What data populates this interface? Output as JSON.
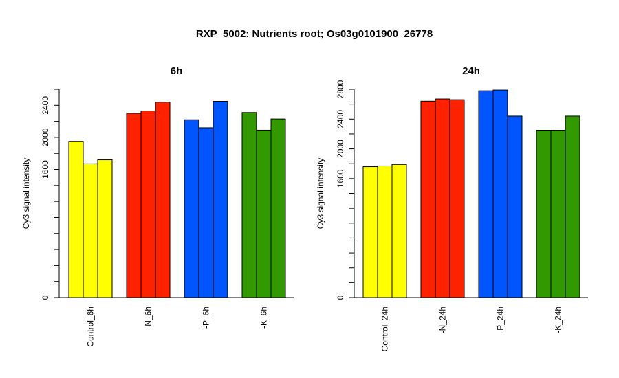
{
  "title": "RXP_5002: Nutrients root; Os03g0101900_26778",
  "chart_data": [
    {
      "type": "bar",
      "title": "6h",
      "ylabel": "Cy3 signal intensity",
      "xlabel": "",
      "yticks": [
        0,
        1600,
        2000,
        2400
      ],
      "ylim": [
        0,
        2600
      ],
      "groups": [
        {
          "name": "Control_6h",
          "color": "#ffff00",
          "values": [
            1950,
            1670,
            1720
          ]
        },
        {
          "name": "-N_6h",
          "color": "#ff2200",
          "values": [
            2300,
            2330,
            2440
          ]
        },
        {
          "name": "-P_6h",
          "color": "#0055ff",
          "values": [
            2220,
            2120,
            2450
          ]
        },
        {
          "name": "-K_6h",
          "color": "#339900",
          "values": [
            2310,
            2090,
            2230
          ]
        }
      ]
    },
    {
      "type": "bar",
      "title": "24h",
      "ylabel": "Cy3 signal intensity",
      "xlabel": "",
      "yticks": [
        0,
        1600,
        2000,
        2400,
        2800
      ],
      "ylim": [
        0,
        2800
      ],
      "groups": [
        {
          "name": "Control_24h",
          "color": "#ffff00",
          "values": [
            1760,
            1770,
            1790
          ]
        },
        {
          "name": "-N_24h",
          "color": "#ff2200",
          "values": [
            2640,
            2670,
            2660
          ]
        },
        {
          "name": "-P_24h",
          "color": "#0055ff",
          "values": [
            2780,
            2790,
            2440
          ]
        },
        {
          "name": "-K_24h",
          "color": "#339900",
          "values": [
            2250,
            2250,
            2440
          ]
        }
      ]
    }
  ]
}
